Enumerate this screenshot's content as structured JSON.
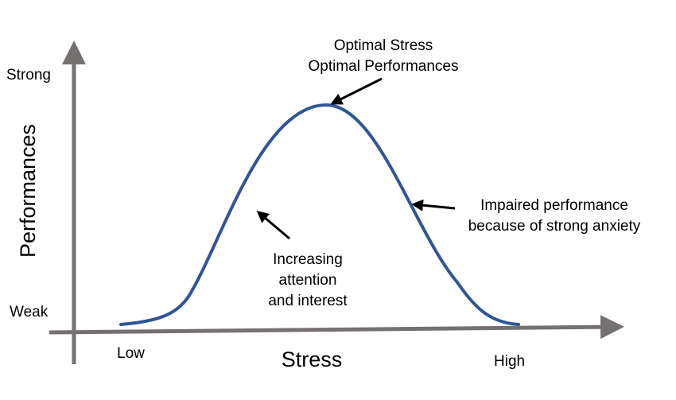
{
  "diagram": {
    "y_axis": {
      "label": "Performances",
      "top_label": "Strong",
      "bottom_label": "Weak"
    },
    "x_axis": {
      "label": "Stress",
      "left_label": "Low",
      "right_label": "High"
    },
    "annotations": {
      "peak": {
        "line1": "Optimal Stress",
        "line2": "Optimal Performances"
      },
      "rising": {
        "line1": "Increasing",
        "line2": "attention",
        "line3": "and interest"
      },
      "falling": {
        "line1": "Impaired performance",
        "line2": "because of strong anxiety"
      }
    },
    "colors": {
      "axis": "#767171",
      "curve": "#2f5597",
      "arrow": "#000000",
      "text": "#000000"
    }
  }
}
